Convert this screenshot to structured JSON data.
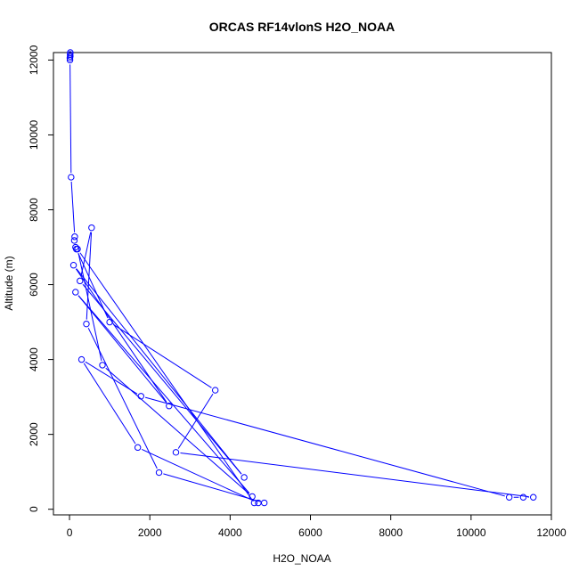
{
  "chart_data": {
    "type": "line",
    "title": "ORCAS RF14vlonS H2O_NOAA",
    "xlabel": "H2O_NOAA",
    "ylabel": "Altitude (m)",
    "xlim": [
      -400,
      12000
    ],
    "ylim": [
      -150,
      12200
    ],
    "x_ticks": [
      0,
      2000,
      4000,
      6000,
      8000,
      10000,
      12000
    ],
    "y_ticks": [
      0,
      2000,
      4000,
      6000,
      8000,
      10000,
      12000
    ],
    "x_tick_labels": [
      "0",
      "2000",
      "4000",
      "6000",
      "8000",
      "10000",
      "12000"
    ],
    "y_tick_labels": [
      "0",
      "2000",
      "4000",
      "6000",
      "8000",
      "10000",
      "12000"
    ],
    "grid": false,
    "marker": "open-circle",
    "series": [
      {
        "color": "#0000ff",
        "points": [
          {
            "x": 20,
            "y": 12200
          },
          {
            "x": 15,
            "y": 12150
          },
          {
            "x": 18,
            "y": 12100
          },
          {
            "x": 10,
            "y": 12050
          },
          {
            "x": 12,
            "y": 12000
          },
          {
            "x": 40,
            "y": 8870
          },
          {
            "x": 130,
            "y": 7280
          },
          {
            "x": 120,
            "y": 7180
          },
          {
            "x": 150,
            "y": 7000
          },
          {
            "x": 170,
            "y": 6950
          },
          {
            "x": 1000,
            "y": 5000
          },
          {
            "x": 3630,
            "y": 3180
          },
          {
            "x": 2650,
            "y": 1520
          },
          {
            "x": 11550,
            "y": 320
          },
          {
            "x": 11300,
            "y": 320
          },
          {
            "x": 10950,
            "y": 320
          },
          {
            "x": 1780,
            "y": 3020
          },
          {
            "x": 300,
            "y": 4000
          },
          {
            "x": 1700,
            "y": 1650
          },
          {
            "x": 4700,
            "y": 170
          },
          {
            "x": 4850,
            "y": 170
          },
          {
            "x": 2230,
            "y": 980
          },
          {
            "x": 420,
            "y": 4950
          },
          {
            "x": 550,
            "y": 7520
          },
          {
            "x": 260,
            "y": 6100
          },
          {
            "x": 4350,
            "y": 850
          },
          {
            "x": 100,
            "y": 6520
          },
          {
            "x": 2480,
            "y": 2760
          },
          {
            "x": 150,
            "y": 5800
          },
          {
            "x": 4550,
            "y": 340
          },
          {
            "x": 820,
            "y": 3850
          },
          {
            "x": 200,
            "y": 6950
          },
          {
            "x": 4600,
            "y": 170
          }
        ]
      }
    ]
  }
}
